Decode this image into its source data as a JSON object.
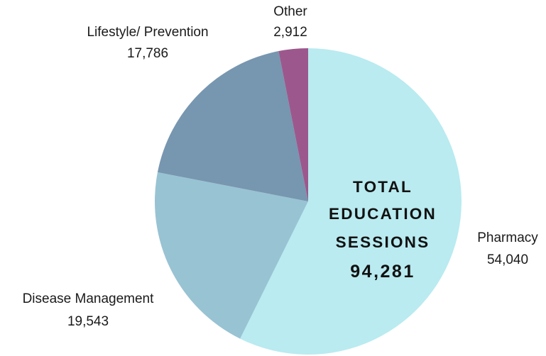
{
  "chart_data": {
    "type": "pie",
    "slices": [
      {
        "label": "Pharmacy",
        "value": 54040,
        "value_text": "54,040",
        "color": "#b9ebf0"
      },
      {
        "label": "Disease Management",
        "value": 19543,
        "value_text": "19,543",
        "color": "#98c3d3"
      },
      {
        "label": "Lifestyle/ Prevention",
        "value": 17786,
        "value_text": "17,786",
        "color": "#7796b0"
      },
      {
        "label": "Other",
        "value": 2912,
        "value_text": "2,912",
        "color": "#9c588c"
      }
    ],
    "center": {
      "lines": [
        "TOTAL",
        "EDUCATION",
        "SESSIONS"
      ],
      "total": "94,281"
    }
  }
}
